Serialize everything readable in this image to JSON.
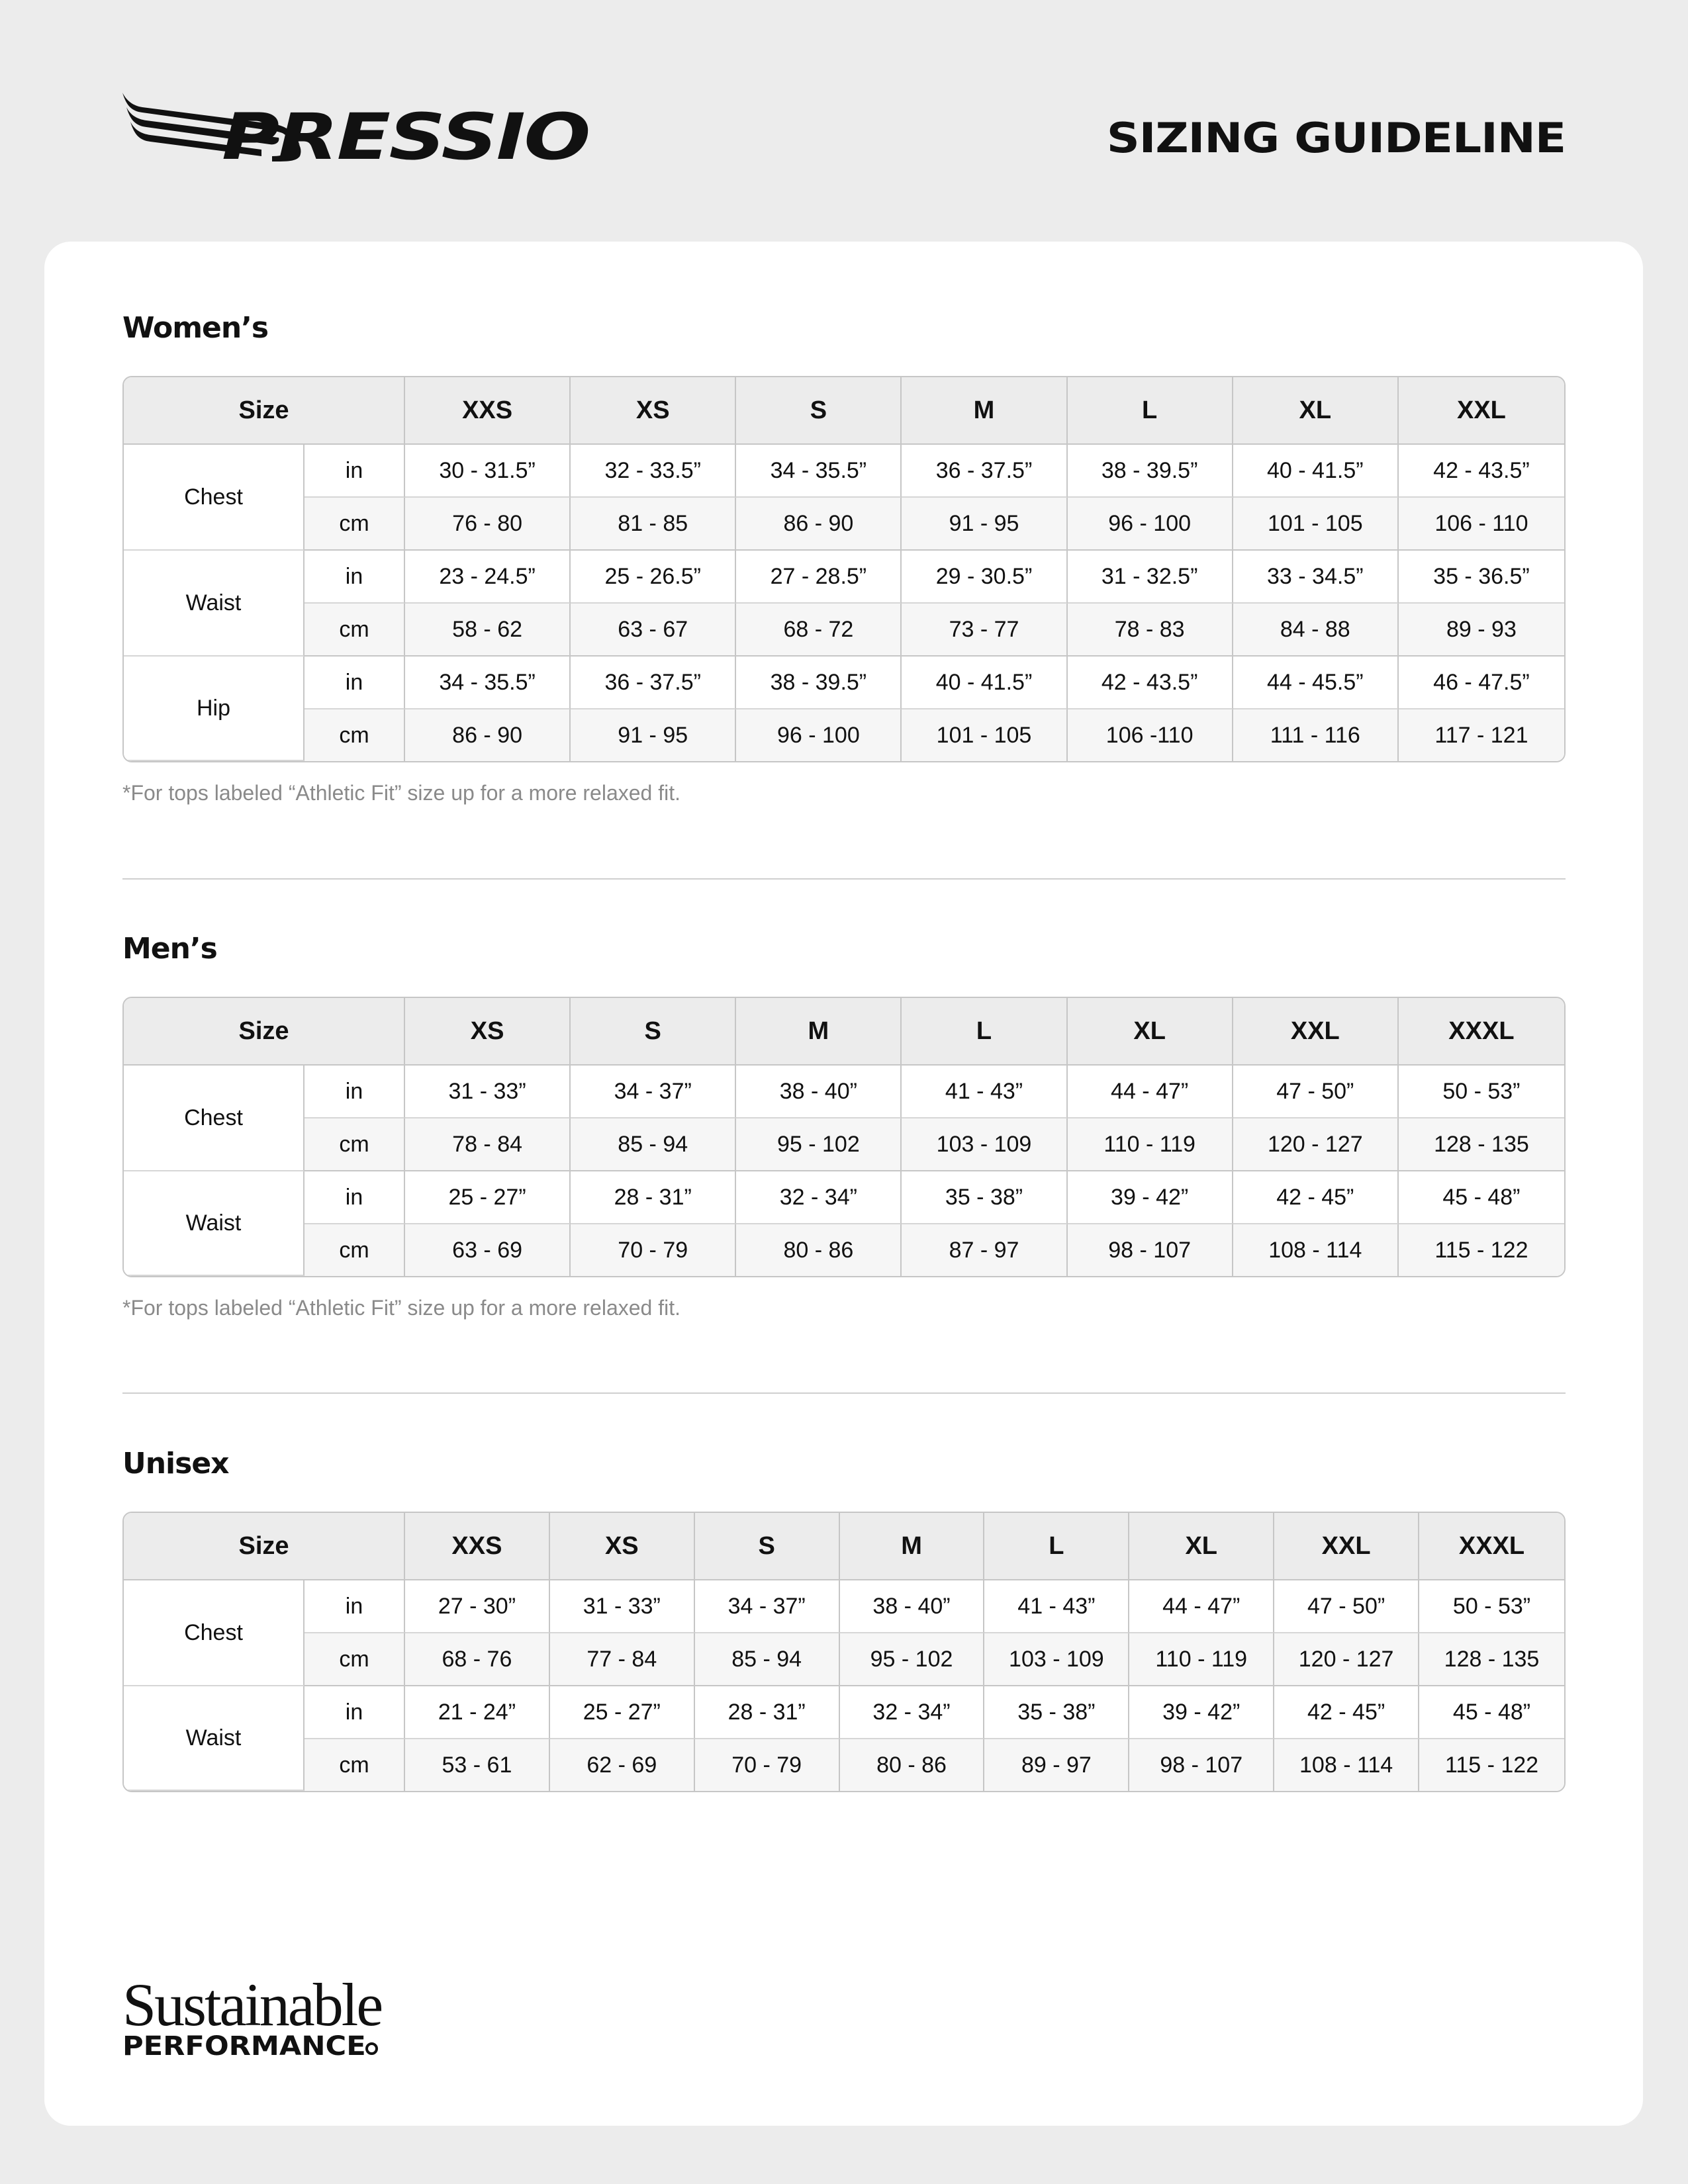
{
  "header": {
    "brand": "PRESSIO",
    "title": "SIZING GUIDELINE"
  },
  "sections": [
    {
      "title": "Women’s",
      "size_label": "Size",
      "sizes": [
        "XXS",
        "XS",
        "S",
        "M",
        "L",
        "XL",
        "XXL"
      ],
      "measures": [
        {
          "name": "Chest",
          "in": [
            "30 - 31.5”",
            "32 - 33.5”",
            "34 - 35.5”",
            "36 - 37.5”",
            "38 - 39.5”",
            "40 - 41.5”",
            "42 - 43.5”"
          ],
          "cm": [
            "76 - 80",
            "81 - 85",
            "86 - 90",
            "91 - 95",
            "96 - 100",
            "101 - 105",
            "106 - 110"
          ]
        },
        {
          "name": "Waist",
          "in": [
            "23 - 24.5”",
            "25 - 26.5”",
            "27 - 28.5”",
            "29 - 30.5”",
            "31 - 32.5”",
            "33 - 34.5”",
            "35 - 36.5”"
          ],
          "cm": [
            "58 - 62",
            "63 - 67",
            "68 - 72",
            "73 - 77",
            "78 - 83",
            "84 - 88",
            "89 - 93"
          ]
        },
        {
          "name": "Hip",
          "in": [
            "34 - 35.5”",
            "36 - 37.5”",
            "38 - 39.5”",
            "40 - 41.5”",
            "42 - 43.5”",
            "44 - 45.5”",
            "46 - 47.5”"
          ],
          "cm": [
            "86 - 90",
            "91 - 95",
            "96 - 100",
            "101 - 105",
            "106 -110",
            "111 - 116",
            "117 - 121"
          ]
        }
      ],
      "note": "*For tops labeled “Athletic Fit” size up for a more relaxed fit."
    },
    {
      "title": "Men’s",
      "size_label": "Size",
      "sizes": [
        "XS",
        "S",
        "M",
        "L",
        "XL",
        "XXL",
        "XXXL"
      ],
      "measures": [
        {
          "name": "Chest",
          "in": [
            "31 - 33”",
            "34 - 37”",
            "38 - 40”",
            "41 - 43”",
            "44 - 47”",
            "47 - 50”",
            "50 - 53”"
          ],
          "cm": [
            "78 - 84",
            "85 - 94",
            "95 - 102",
            "103 - 109",
            "110 - 119",
            "120 - 127",
            "128 - 135"
          ]
        },
        {
          "name": "Waist",
          "in": [
            "25 - 27”",
            "28 - 31”",
            "32 - 34”",
            "35 - 38”",
            "39 - 42”",
            "42 - 45”",
            "45 - 48”"
          ],
          "cm": [
            "63 - 69",
            "70 - 79",
            "80 - 86",
            "87 - 97",
            "98 - 107",
            "108 - 114",
            "115 - 122"
          ]
        }
      ],
      "note": "*For tops labeled “Athletic Fit” size up for a more relaxed fit."
    },
    {
      "title": "Unisex",
      "size_label": "Size",
      "sizes": [
        "XXS",
        "XS",
        "S",
        "M",
        "L",
        "XL",
        "XXL",
        "XXXL"
      ],
      "measures": [
        {
          "name": "Chest",
          "in": [
            "27 - 30”",
            "31 - 33”",
            "34 - 37”",
            "38 - 40”",
            "41 - 43”",
            "44 - 47”",
            "47 - 50”",
            "50 - 53”"
          ],
          "cm": [
            "68 - 76",
            "77 - 84",
            "85 - 94",
            "95 - 102",
            "103 - 109",
            "110 - 119",
            "120 - 127",
            "128 - 135"
          ]
        },
        {
          "name": "Waist",
          "in": [
            "21 - 24”",
            "25 - 27”",
            "28 - 31”",
            "32 - 34”",
            "35 - 38”",
            "39 - 42”",
            "42 - 45”",
            "45 - 48”"
          ],
          "cm": [
            "53 - 61",
            "62 - 69",
            "70 - 79",
            "80 - 86",
            "89 - 97",
            "98 - 107",
            "108 - 114",
            "115 - 122"
          ]
        }
      ]
    }
  ],
  "units": {
    "in": "in",
    "cm": "cm"
  },
  "footer": {
    "line1": "Sustainable",
    "line2": "PERFORMANCE"
  }
}
